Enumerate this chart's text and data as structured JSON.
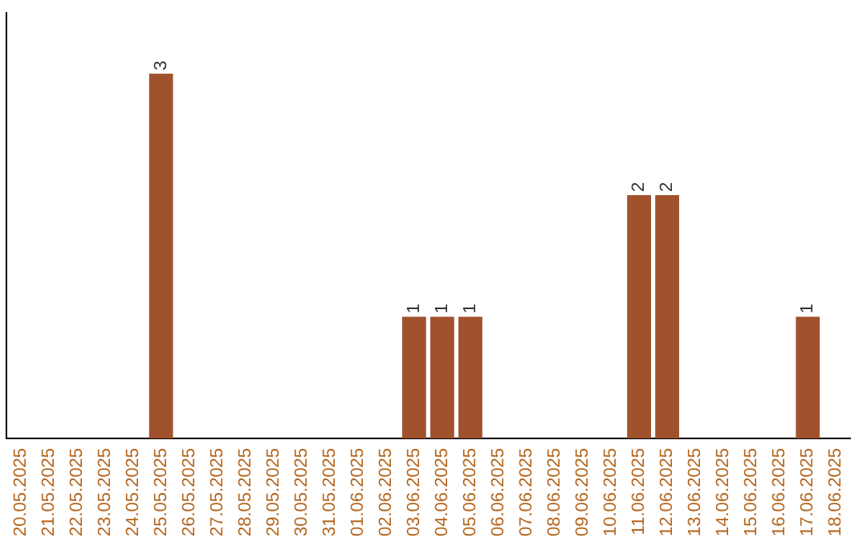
{
  "chart_data": {
    "type": "bar",
    "categories": [
      "20.05.2025",
      "21.05.2025",
      "22.05.2025",
      "23.05.2025",
      "24.05.2025",
      "25.05.2025",
      "26.05.2025",
      "27.05.2025",
      "28.05.2025",
      "29.05.2025",
      "30.05.2025",
      "31.05.2025",
      "01.06.2025",
      "02.06.2025",
      "03.06.2025",
      "04.06.2025",
      "05.06.2025",
      "06.06.2025",
      "07.06.2025",
      "08.06.2025",
      "09.06.2025",
      "10.06.2025",
      "11.06.2025",
      "12.06.2025",
      "13.06.2025",
      "14.06.2025",
      "15.06.2025",
      "16.06.2025",
      "17.06.2025",
      "18.06.2025"
    ],
    "values": [
      0,
      0,
      0,
      0,
      0,
      3,
      0,
      0,
      0,
      0,
      0,
      0,
      0,
      0,
      1,
      1,
      1,
      0,
      0,
      0,
      0,
      0,
      2,
      2,
      0,
      0,
      0,
      0,
      1,
      0
    ],
    "value_labels": [
      null,
      null,
      null,
      null,
      null,
      "3",
      null,
      null,
      null,
      null,
      null,
      null,
      null,
      null,
      "1",
      "1",
      "1",
      null,
      null,
      null,
      null,
      null,
      "2",
      "2",
      null,
      null,
      null,
      null,
      "1",
      null
    ],
    "color": "#a0522d",
    "tick_labels": "x",
    "grid": false,
    "legend": false
  }
}
